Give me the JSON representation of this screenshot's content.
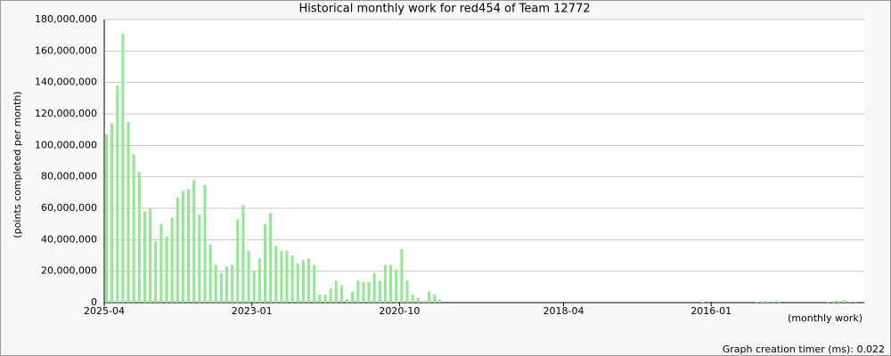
{
  "chart_data": {
    "type": "bar",
    "title": "Historical monthly work for red454 of Team 12772",
    "y_label": "(points completed per month)",
    "x_label": "(monthly work)",
    "footer": "Graph creation timer (ms): 0.022",
    "color": "#90e890",
    "grid": true,
    "ylim": [
      0,
      180000000
    ],
    "yticks": [
      0,
      {
        "value": 20000000,
        "label": "20,000,000"
      },
      {
        "value": 40000000,
        "label": "40,000,000"
      },
      {
        "value": 60000000,
        "label": "60,000,000"
      },
      {
        "value": 80000000,
        "label": "80,000,000"
      },
      {
        "value": 100000000,
        "label": "100,000,000"
      },
      {
        "value": 120000000,
        "label": "120,000,000"
      },
      {
        "value": 140000000,
        "label": "140,000,000"
      },
      {
        "value": 160000000,
        "label": "160,000,000"
      },
      {
        "value": 180000000,
        "label": "180,000,000"
      }
    ],
    "categories": [
      "2025-04",
      null,
      null,
      null,
      null,
      null,
      null,
      null,
      null,
      null,
      null,
      null,
      null,
      null,
      null,
      null,
      null,
      null,
      null,
      null,
      null,
      null,
      null,
      null,
      null,
      null,
      null,
      "2023-01",
      null,
      null,
      null,
      null,
      null,
      null,
      null,
      null,
      null,
      null,
      null,
      null,
      null,
      null,
      null,
      null,
      null,
      null,
      null,
      null,
      null,
      null,
      null,
      null,
      null,
      null,
      "2020-10",
      null,
      null,
      null,
      null,
      null,
      null,
      null,
      null,
      null,
      null,
      null,
      null,
      null,
      null,
      null,
      null,
      null,
      null,
      null,
      null,
      null,
      null,
      null,
      null,
      null,
      null,
      null,
      null,
      null,
      "2018-04",
      null,
      null,
      null,
      null,
      null,
      null,
      null,
      null,
      null,
      null,
      null,
      null,
      null,
      null,
      null,
      null,
      null,
      null,
      null,
      null,
      null,
      null,
      null,
      null,
      null,
      null,
      "2016-01",
      null,
      null,
      null,
      null,
      null,
      null,
      null,
      null,
      null,
      null,
      null,
      null,
      null,
      null,
      null,
      null,
      null,
      null,
      null,
      null,
      null,
      null,
      null,
      null,
      null,
      null,
      null
    ],
    "values": [
      107000000,
      114000000,
      138000000,
      171000000,
      115000000,
      94000000,
      83000000,
      58000000,
      60000000,
      39000000,
      50000000,
      42000000,
      54000000,
      67000000,
      71000000,
      72000000,
      78000000,
      56000000,
      75000000,
      37000000,
      24000000,
      19000000,
      23000000,
      24000000,
      53000000,
      62000000,
      33000000,
      20000000,
      28000000,
      50000000,
      57000000,
      36000000,
      33000000,
      33000000,
      30000000,
      25000000,
      27000000,
      28000000,
      24000000,
      5000000,
      5000000,
      9000000,
      14000000,
      11000000,
      2000000,
      7000000,
      14000000,
      13000000,
      13000000,
      19000000,
      14000000,
      24000000,
      24000000,
      21000000,
      34000000,
      14000000,
      5000000,
      3000000,
      1000000,
      7000000,
      5000000,
      2000000,
      0,
      0,
      0,
      0,
      0,
      0,
      0,
      0,
      0,
      0,
      0,
      0,
      0,
      0,
      0,
      0,
      0,
      0,
      0,
      0,
      0,
      0,
      0,
      0,
      0,
      0,
      0,
      0,
      0,
      0,
      0,
      0,
      0,
      0,
      0,
      0,
      0,
      0,
      0,
      0,
      0,
      0,
      0,
      0,
      0,
      0,
      0,
      300000,
      0,
      0,
      0,
      0,
      0,
      0,
      0,
      0,
      0,
      300000,
      300000,
      500000,
      500000,
      500000,
      0,
      0,
      0,
      0,
      0,
      0,
      0,
      0,
      500000,
      800000,
      1000000,
      1500000,
      600000,
      800000,
      0
    ]
  }
}
